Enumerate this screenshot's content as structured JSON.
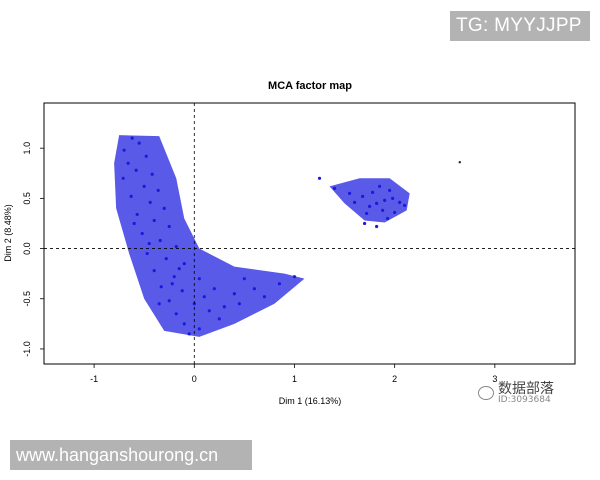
{
  "badges": {
    "top_right": "TG: MYYJJPP",
    "bottom_left": "www.hanganshourong.cn"
  },
  "watermark": {
    "name": "数据部落",
    "id": "ID:3093684"
  },
  "colors": {
    "points": "#1a1adf",
    "labels": "#3333ee",
    "frame": "#000000",
    "reference_lines": "#000000",
    "background": "#ffffff"
  },
  "chart_data": {
    "type": "scatter",
    "title": "MCA factor map",
    "xlabel": "Dim 1 (16.13%)",
    "ylabel": "Dim 2 (8.48%)",
    "xlim": [
      -1.5,
      3.8
    ],
    "ylim": [
      -1.15,
      1.45
    ],
    "x_ticks": [
      -1,
      0,
      1,
      2,
      3
    ],
    "y_ticks": [
      -1.0,
      -0.5,
      0.0,
      0.5,
      1.0
    ],
    "x_tick_labels": [
      "-1",
      "0",
      "1",
      "2",
      "3"
    ],
    "y_tick_labels": [
      "-1.0",
      "-0.5",
      "0.0",
      "0.5",
      "1.0"
    ],
    "reference_lines": {
      "x": 0,
      "y": 0,
      "style": "dashed"
    },
    "grid": false,
    "legend": "none",
    "series": [
      {
        "cluster": "main",
        "points": [
          [
            -0.62,
            1.1
          ],
          [
            -0.55,
            1.05
          ],
          [
            -0.7,
            0.98
          ],
          [
            -0.48,
            0.92
          ],
          [
            -0.66,
            0.85
          ],
          [
            -0.58,
            0.78
          ],
          [
            -0.42,
            0.74
          ],
          [
            -0.71,
            0.7
          ],
          [
            -0.5,
            0.62
          ],
          [
            -0.36,
            0.58
          ],
          [
            -0.63,
            0.52
          ],
          [
            -0.44,
            0.46
          ],
          [
            -0.3,
            0.4
          ],
          [
            -0.57,
            0.34
          ],
          [
            -0.4,
            0.28
          ],
          [
            -0.25,
            0.22
          ],
          [
            -0.52,
            0.15
          ],
          [
            -0.34,
            0.08
          ],
          [
            -0.18,
            0.02
          ],
          [
            -0.47,
            -0.05
          ],
          [
            -0.28,
            -0.1
          ],
          [
            -0.1,
            -0.15
          ],
          [
            -0.4,
            -0.22
          ],
          [
            -0.2,
            -0.28
          ],
          [
            0.05,
            -0.3
          ],
          [
            -0.33,
            -0.38
          ],
          [
            -0.12,
            -0.42
          ],
          [
            0.2,
            -0.4
          ],
          [
            -0.25,
            -0.52
          ],
          [
            0.0,
            -0.55
          ],
          [
            0.4,
            -0.45
          ],
          [
            -0.18,
            -0.65
          ],
          [
            0.15,
            -0.62
          ],
          [
            0.6,
            -0.4
          ],
          [
            -0.1,
            -0.75
          ],
          [
            0.3,
            -0.58
          ],
          [
            0.85,
            -0.35
          ],
          [
            0.05,
            -0.8
          ],
          [
            0.45,
            -0.55
          ],
          [
            1.0,
            -0.28
          ],
          [
            -0.05,
            -0.85
          ],
          [
            0.25,
            -0.7
          ],
          [
            0.7,
            -0.48
          ],
          [
            -0.45,
            0.05
          ],
          [
            -0.6,
            0.25
          ],
          [
            -0.22,
            -0.35
          ],
          [
            0.1,
            -0.48
          ],
          [
            -0.35,
            -0.55
          ],
          [
            0.5,
            -0.3
          ],
          [
            -0.15,
            -0.2
          ]
        ]
      },
      {
        "cluster": "right",
        "points": [
          [
            1.9,
            0.48
          ],
          [
            1.82,
            0.45
          ],
          [
            1.98,
            0.5
          ],
          [
            1.75,
            0.42
          ],
          [
            2.05,
            0.46
          ],
          [
            1.68,
            0.52
          ],
          [
            1.88,
            0.38
          ],
          [
            1.95,
            0.58
          ],
          [
            1.78,
            0.56
          ],
          [
            2.1,
            0.43
          ],
          [
            1.6,
            0.46
          ],
          [
            1.85,
            0.62
          ],
          [
            1.72,
            0.35
          ],
          [
            2.0,
            0.36
          ],
          [
            1.55,
            0.55
          ],
          [
            1.93,
            0.3
          ],
          [
            1.4,
            0.6
          ],
          [
            1.25,
            0.7
          ],
          [
            1.7,
            0.25
          ],
          [
            1.82,
            0.22
          ]
        ]
      },
      {
        "cluster": "outlier",
        "points": [
          [
            2.65,
            0.86
          ]
        ]
      }
    ]
  }
}
